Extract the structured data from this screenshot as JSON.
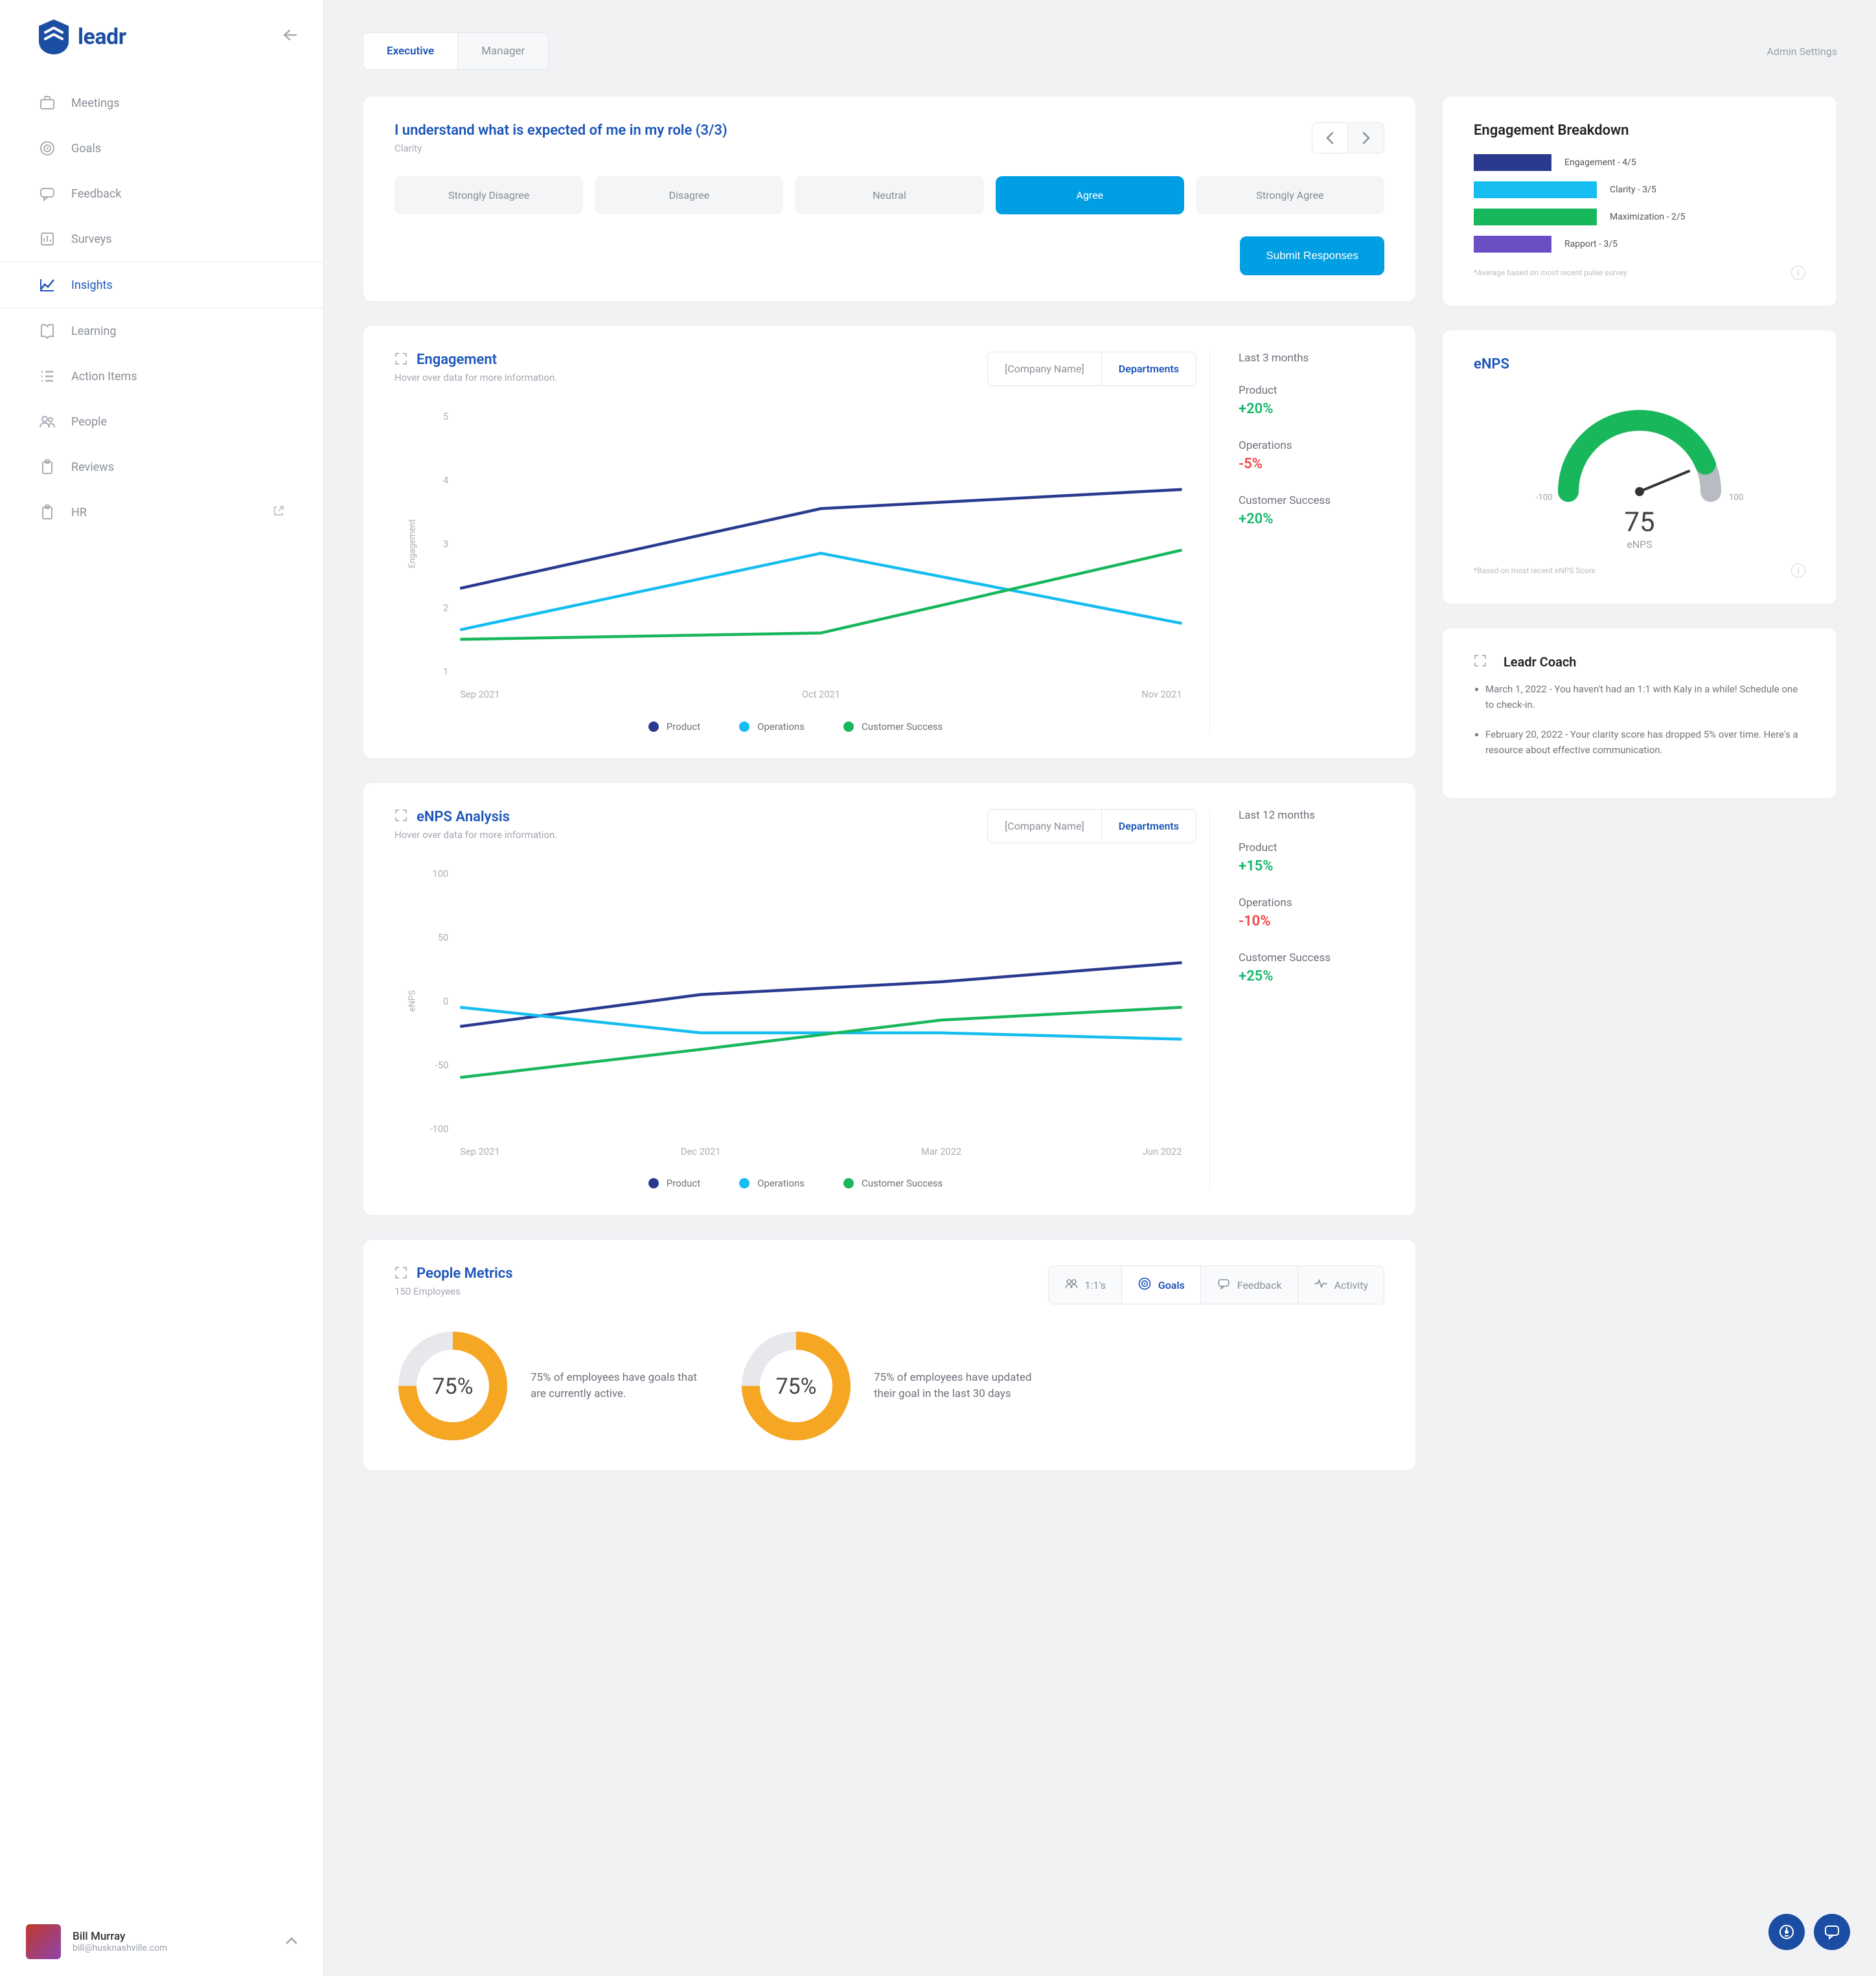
{
  "brand": {
    "name": "leadr"
  },
  "sidebar": {
    "items": [
      {
        "label": "Meetings",
        "icon": "briefcase"
      },
      {
        "label": "Goals",
        "icon": "target"
      },
      {
        "label": "Feedback",
        "icon": "chat"
      },
      {
        "label": "Surveys",
        "icon": "bars"
      },
      {
        "label": "Insights",
        "icon": "trend",
        "active": true
      },
      {
        "label": "Learning",
        "icon": "book"
      },
      {
        "label": "Action Items",
        "icon": "list"
      },
      {
        "label": "People",
        "icon": "people"
      },
      {
        "label": "Reviews",
        "icon": "clipboard"
      },
      {
        "label": "HR",
        "icon": "clipboard",
        "external": true
      }
    ]
  },
  "user": {
    "name": "Bill Murray",
    "email": "bill@husknashville.com"
  },
  "topbar": {
    "tabs": [
      {
        "label": "Executive",
        "active": true
      },
      {
        "label": "Manager"
      }
    ],
    "admin": "Admin Settings"
  },
  "survey": {
    "question": "I understand what is expected of me in my role (3/3)",
    "category": "Clarity",
    "options": [
      "Strongly Disagree",
      "Disagree",
      "Neutral",
      "Agree",
      "Strongly Agree"
    ],
    "selected_index": 3,
    "submit": "Submit Responses"
  },
  "engagement": {
    "title": "Engagement",
    "subtitle": "Hover over data for more information.",
    "scope_tabs": [
      "[Company Name]",
      "Departments"
    ],
    "scope_active": 1,
    "y_label": "Engagement",
    "y_ticks": [
      "1",
      "2",
      "3",
      "4",
      "5"
    ],
    "x_labels": [
      "Sep 2021",
      "Oct 2021",
      "Nov 2021"
    ],
    "ylim": [
      1,
      5
    ],
    "series": [
      {
        "name": "Product",
        "color": "#2a3b8f",
        "values": [
          2.3,
          3.55,
          3.85
        ]
      },
      {
        "name": "Operations",
        "color": "#15bdf0",
        "values": [
          1.65,
          2.85,
          1.75
        ]
      },
      {
        "name": "Customer Success",
        "color": "#18b75b",
        "values": [
          1.5,
          1.6,
          2.9
        ]
      }
    ],
    "range_label": "Last 3 months",
    "stats": [
      {
        "label": "Product",
        "value": "+20%",
        "positive": true
      },
      {
        "label": "Operations",
        "value": "-5%",
        "positive": false
      },
      {
        "label": "Customer Success",
        "value": "+20%",
        "positive": true
      }
    ]
  },
  "enps_analysis": {
    "title": "eNPS Analysis",
    "subtitle": "Hover over data for more information.",
    "scope_tabs": [
      "[Company Name]",
      "Departments"
    ],
    "scope_active": 1,
    "y_label": "eNPS",
    "y_ticks": [
      "-100",
      "-50",
      "0",
      "50",
      "100"
    ],
    "x_labels": [
      "Sep 2021",
      "Dec 2021",
      "Mar 2022",
      "Jun 2022"
    ],
    "ylim": [
      -100,
      100
    ],
    "series": [
      {
        "name": "Product",
        "color": "#2a3b8f",
        "values": [
          -20,
          5,
          15,
          30
        ]
      },
      {
        "name": "Operations",
        "color": "#15bdf0",
        "values": [
          -5,
          -25,
          -25,
          -30
        ]
      },
      {
        "name": "Customer Success",
        "color": "#18b75b",
        "values": [
          -60,
          -38,
          -15,
          -5
        ]
      }
    ],
    "range_label": "Last 12 months",
    "stats": [
      {
        "label": "Product",
        "value": "+15%",
        "positive": true
      },
      {
        "label": "Operations",
        "value": "-10%",
        "positive": false
      },
      {
        "label": "Customer Success",
        "value": "+25%",
        "positive": true
      }
    ]
  },
  "breakdown": {
    "title": "Engagement Breakdown",
    "rows": [
      {
        "label": "Engagement - 4/5",
        "color": "#2a3b8f",
        "width": 120
      },
      {
        "label": "Clarity - 3/5",
        "color": "#15bdf0",
        "width": 190
      },
      {
        "label": "Maximization - 2/5",
        "color": "#18b75b",
        "width": 190
      },
      {
        "label": "Rapport - 3/5",
        "color": "#6a4fc4",
        "width": 120
      }
    ],
    "footnote": "*Average based on most recent pulse survey"
  },
  "enps_gauge": {
    "title": "eNPS",
    "value": "75",
    "caption": "eNPS",
    "min": "-100",
    "max": "100",
    "fill_color": "#18b75b",
    "track_color": "#b8bcc2",
    "angle_deg": 157.5,
    "footnote": "*Based on most recent eNPS Score"
  },
  "coach": {
    "title": "Leadr Coach",
    "items": [
      "March 1, 2022 - You haven't had an 1:1 with Kaly in a while! Schedule one to check-in.",
      "February 20, 2022 - Your clarity score has dropped 5% over time. Here's a resource about effective communication."
    ]
  },
  "people_metrics": {
    "title": "People Metrics",
    "subtitle": "150 Employees",
    "tabs": [
      "1:1's",
      "Goals",
      "Feedback",
      "Activity"
    ],
    "active_tab": 1,
    "donuts": [
      {
        "pct": 75,
        "label": "75%",
        "text": "75% of employees have goals that are currently active.",
        "color": "#f5a623",
        "track": "#e6e8ec"
      },
      {
        "pct": 75,
        "label": "75%",
        "text": "75% of employees have updated their goal in the last 30 days",
        "color": "#f5a623",
        "track": "#e6e8ec"
      }
    ]
  }
}
